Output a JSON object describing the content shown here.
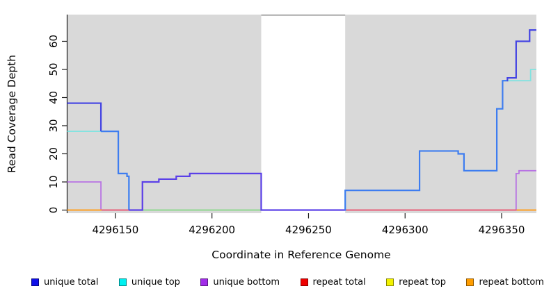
{
  "chart_data": {
    "type": "line",
    "subtype": "step-coverage-plot",
    "title": "",
    "xlabel": "Coordinate in Reference Genome",
    "ylabel": "Read Coverage Depth",
    "xlim": [
      4296125,
      4296368
    ],
    "ylim": [
      0,
      69.5
    ],
    "x_ticks": [
      4296150,
      4296200,
      4296250,
      4296300,
      4296350
    ],
    "y_ticks": [
      0,
      10,
      20,
      30,
      40,
      50,
      60
    ],
    "grid": false,
    "plot_background": "#d9d9d9",
    "uncovered_region": {
      "from": 4296225.5,
      "to": 4296269,
      "fill": "#ffffff",
      "top_border": "#8a8a8a"
    },
    "series": [
      {
        "name": "unique total",
        "legend_color": "#0f0fe8",
        "line_color": "#4343e3",
        "steps": [
          [
            4296125,
            38
          ],
          [
            4296142.5,
            28
          ],
          [
            4296151.5,
            13
          ],
          [
            4296156,
            12
          ],
          [
            4296157,
            0
          ],
          [
            4296164,
            10
          ],
          [
            4296172.5,
            11
          ],
          [
            4296181.5,
            12
          ],
          [
            4296188.5,
            13
          ],
          [
            4296225.5,
            0
          ],
          [
            4296269,
            7
          ],
          [
            4296307.5,
            21
          ],
          [
            4296327.5,
            20
          ],
          [
            4296330.5,
            14
          ],
          [
            4296347.5,
            36
          ],
          [
            4296350.5,
            46
          ],
          [
            4296353,
            47
          ],
          [
            4296357.5,
            60
          ],
          [
            4296364.5,
            64
          ],
          [
            4296368,
            64
          ]
        ]
      },
      {
        "name": "unique top",
        "legend_color": "#00f0f0",
        "line_color": "#82e3e0",
        "steps": [
          [
            4296125,
            28
          ],
          [
            4296151.5,
            13
          ],
          [
            4296156,
            12
          ],
          [
            4296157,
            0
          ],
          [
            4296269,
            7
          ],
          [
            4296307.5,
            21
          ],
          [
            4296327.5,
            20
          ],
          [
            4296330.5,
            14
          ],
          [
            4296347.5,
            36
          ],
          [
            4296350.5,
            46
          ],
          [
            4296365,
            50
          ],
          [
            4296368,
            50
          ]
        ]
      },
      {
        "name": "unique bottom",
        "legend_color": "#a12ce8",
        "line_color": "#b873e3",
        "steps": [
          [
            4296125,
            10
          ],
          [
            4296142.5,
            0
          ],
          [
            4296164,
            10
          ],
          [
            4296172.5,
            11
          ],
          [
            4296181.5,
            12
          ],
          [
            4296188.5,
            13
          ],
          [
            4296225.5,
            0
          ],
          [
            4296357.5,
            13
          ],
          [
            4296359,
            14
          ],
          [
            4296368,
            14
          ]
        ]
      },
      {
        "name": "repeat total",
        "legend_color": "#ee0000",
        "line_color": "#e85d78",
        "steps": [
          [
            4296125,
            0
          ],
          [
            4296368,
            0
          ]
        ]
      },
      {
        "name": "repeat top",
        "legend_color": "#f2f200",
        "line_color": "#e8e850",
        "steps": [
          [
            4296125,
            0
          ],
          [
            4296368,
            0
          ]
        ]
      },
      {
        "name": "repeat bottom",
        "legend_color": "#ff9d00",
        "line_color": "#ffa021",
        "steps": [
          [
            4296125,
            0
          ],
          [
            4296368,
            0
          ]
        ]
      }
    ],
    "render": {
      "zero_line_segments": [
        {
          "from": 4296125,
          "to": 4296142.8,
          "color": "#ffa021"
        },
        {
          "from": 4296142.8,
          "to": 4296157.2,
          "color": "#e85d78"
        },
        {
          "from": 4296164,
          "to": 4296225.5,
          "color": "#90d890"
        },
        {
          "from": 4296269,
          "to": 4296357.8,
          "color": "#e85d78"
        },
        {
          "from": 4296357.8,
          "to": 4296368,
          "color": "#ffa021"
        }
      ],
      "total_line_segments": [
        {
          "from": 4296125,
          "to": 4296142.5,
          "color": "#4343e3"
        },
        {
          "from": 4296142.5,
          "to": 4296157,
          "color": "#3e7df0"
        },
        {
          "from": 4296157,
          "to": 4296268.9,
          "color": "#5b40e8"
        },
        {
          "from": 4296268.9,
          "to": 4296352.9,
          "color": "#3e7df0"
        },
        {
          "from": 4296352.9,
          "to": 4296368,
          "color": "#4343e3"
        }
      ]
    }
  },
  "legend": {
    "items": [
      {
        "label": "unique total",
        "color": "#0f0fe8"
      },
      {
        "label": "unique top",
        "color": "#00f0f0"
      },
      {
        "label": "unique bottom",
        "color": "#a12ce8"
      },
      {
        "label": "repeat total",
        "color": "#ee0000"
      },
      {
        "label": "repeat top",
        "color": "#f2f200"
      },
      {
        "label": "repeat bottom",
        "color": "#ff9d00"
      }
    ]
  }
}
